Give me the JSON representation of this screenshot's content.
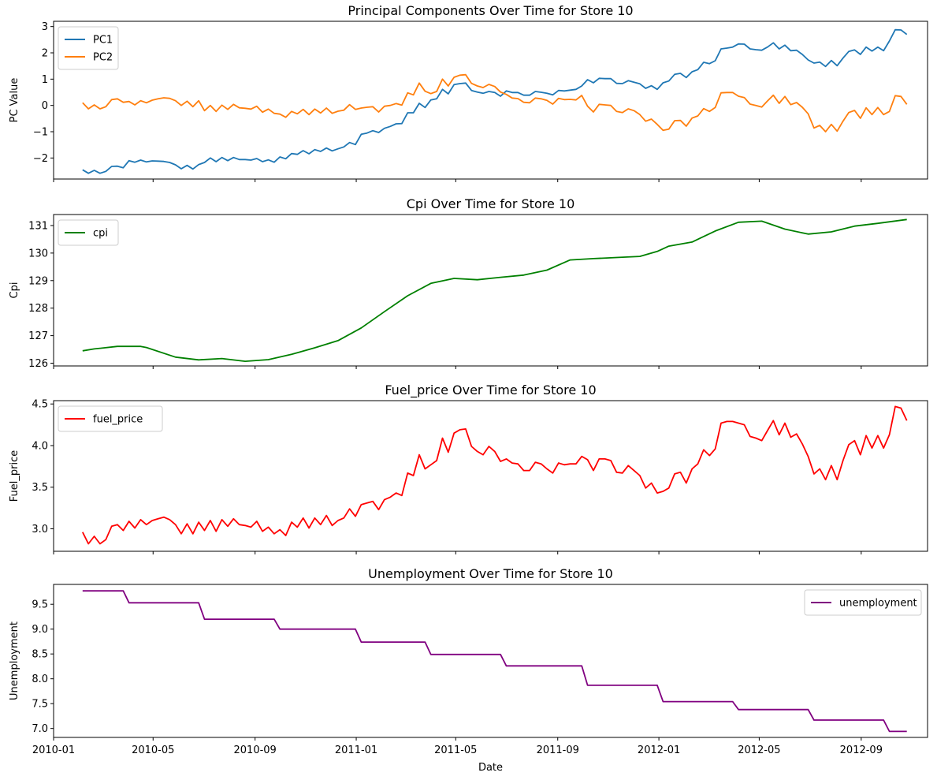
{
  "chart_data": [
    {
      "type": "line",
      "title": "Principal Components Over Time for Store 10",
      "xlabel": "",
      "ylabel": "PC Value",
      "xlim": [
        "2010-01-01",
        "2012-11-20"
      ],
      "ylim": [
        -2.8,
        3.2
      ],
      "yticks": [
        3,
        2,
        1,
        0,
        -1,
        -2
      ],
      "ytick_labels": [
        "3",
        "2",
        "1",
        "0",
        "−1",
        "−2"
      ],
      "legend_position": "upper-left",
      "grid": false,
      "series": [
        {
          "name": "PC1",
          "color": "#1f77b4",
          "step_days": 7,
          "start": "2010-02-05",
          "values": [
            -2.45,
            -2.58,
            -2.47,
            -2.58,
            -2.51,
            -2.32,
            -2.31,
            -2.37,
            -2.1,
            -2.16,
            -2.08,
            -2.15,
            -2.11,
            -2.12,
            -2.13,
            -2.17,
            -2.26,
            -2.41,
            -2.28,
            -2.42,
            -2.25,
            -2.17,
            -2.0,
            -2.14,
            -1.98,
            -2.1,
            -1.98,
            -2.06,
            -2.06,
            -2.08,
            -2.02,
            -2.14,
            -2.07,
            -2.16,
            -1.96,
            -2.03,
            -1.83,
            -1.86,
            -1.72,
            -1.84,
            -1.68,
            -1.75,
            -1.62,
            -1.73,
            -1.65,
            -1.58,
            -1.41,
            -1.49,
            -1.1,
            -1.05,
            -0.96,
            -1.03,
            -0.87,
            -0.8,
            -0.7,
            -0.69,
            -0.28,
            -0.28,
            0.08,
            -0.08,
            0.21,
            0.25,
            0.61,
            0.44,
            0.79,
            0.83,
            0.85,
            0.57,
            0.51,
            0.46,
            0.53,
            0.49,
            0.35,
            0.55,
            0.49,
            0.49,
            0.39,
            0.39,
            0.53,
            0.5,
            0.46,
            0.4,
            0.57,
            0.55,
            0.58,
            0.61,
            0.74,
            0.98,
            0.86,
            1.03,
            1.02,
            1.02,
            0.84,
            0.83,
            0.94,
            0.88,
            0.82,
            0.65,
            0.75,
            0.61,
            0.86,
            0.93,
            1.18,
            1.22,
            1.06,
            1.28,
            1.36,
            1.64,
            1.59,
            1.7,
            2.15,
            2.18,
            2.22,
            2.34,
            2.33,
            2.15,
            2.12,
            2.1,
            2.22,
            2.38,
            2.15,
            2.29,
            2.08,
            2.1,
            1.94,
            1.73,
            1.61,
            1.65,
            1.48,
            1.71,
            1.51,
            1.8,
            2.05,
            2.11,
            1.94,
            2.22,
            2.07,
            2.22,
            2.08,
            2.45,
            2.88,
            2.87,
            2.7
          ]
        },
        {
          "name": "PC2",
          "color": "#ff7f0e",
          "step_days": 7,
          "start": "2010-02-05",
          "values": [
            0.1,
            -0.13,
            0.02,
            -0.13,
            -0.05,
            0.22,
            0.25,
            0.12,
            0.15,
            0.02,
            0.18,
            0.1,
            0.2,
            0.25,
            0.29,
            0.27,
            0.18,
            0.0,
            0.16,
            -0.05,
            0.18,
            -0.2,
            0.0,
            -0.23,
            0.01,
            -0.15,
            0.04,
            -0.09,
            -0.11,
            -0.14,
            -0.03,
            -0.26,
            -0.14,
            -0.3,
            -0.33,
            -0.45,
            -0.23,
            -0.32,
            -0.15,
            -0.35,
            -0.14,
            -0.29,
            -0.1,
            -0.3,
            -0.22,
            -0.18,
            0.03,
            -0.15,
            -0.1,
            -0.07,
            -0.05,
            -0.25,
            -0.03,
            0.0,
            0.07,
            0.01,
            0.48,
            0.4,
            0.85,
            0.54,
            0.45,
            0.53,
            1.0,
            0.74,
            1.07,
            1.15,
            1.17,
            0.84,
            0.74,
            0.68,
            0.8,
            0.72,
            0.51,
            0.42,
            0.28,
            0.26,
            0.12,
            0.1,
            0.28,
            0.25,
            0.19,
            0.05,
            0.27,
            0.22,
            0.23,
            0.21,
            0.38,
            -0.03,
            -0.25,
            0.04,
            0.02,
            0.0,
            -0.23,
            -0.27,
            -0.13,
            -0.2,
            -0.35,
            -0.6,
            -0.52,
            -0.72,
            -0.95,
            -0.9,
            -0.58,
            -0.57,
            -0.79,
            -0.48,
            -0.4,
            -0.12,
            -0.23,
            -0.08,
            0.48,
            0.49,
            0.49,
            0.35,
            0.3,
            0.05,
            0.0,
            -0.06,
            0.17,
            0.39,
            0.08,
            0.34,
            0.03,
            0.11,
            -0.07,
            -0.32,
            -0.86,
            -0.76,
            -1.0,
            -0.72,
            -0.98,
            -0.6,
            -0.27,
            -0.19,
            -0.49,
            -0.09,
            -0.35,
            -0.08,
            -0.35,
            -0.23,
            0.37,
            0.34,
            0.04
          ]
        }
      ]
    },
    {
      "type": "line",
      "title": "Cpi Over Time for Store 10",
      "xlabel": "",
      "ylabel": "Cpi",
      "xlim": [
        "2010-01-01",
        "2012-11-20"
      ],
      "ylim": [
        125.9,
        131.4
      ],
      "yticks": [
        131,
        130,
        129,
        128,
        127,
        126
      ],
      "ytick_labels": [
        "131",
        "130",
        "129",
        "128",
        "127",
        "126"
      ],
      "legend_position": "upper-left",
      "grid": false,
      "series": [
        {
          "name": "cpi",
          "color": "#008000",
          "x": [
            "2010-02-05",
            "2010-02-19",
            "2010-03-19",
            "2010-04-16",
            "2010-04-23",
            "2010-05-28",
            "2010-06-25",
            "2010-07-23",
            "2010-08-20",
            "2010-09-17",
            "2010-10-15",
            "2010-11-12",
            "2010-12-10",
            "2011-01-07",
            "2011-02-04",
            "2011-03-04",
            "2011-04-01",
            "2011-04-29",
            "2011-05-27",
            "2011-06-24",
            "2011-07-22",
            "2011-08-19",
            "2011-09-16",
            "2011-10-14",
            "2011-11-11",
            "2011-12-09",
            "2011-12-30",
            "2012-01-13",
            "2012-02-10",
            "2012-03-09",
            "2012-04-06",
            "2012-05-04",
            "2012-06-01",
            "2012-06-29",
            "2012-07-27",
            "2012-08-24",
            "2012-09-21",
            "2012-10-26"
          ],
          "values": [
            126.45,
            126.52,
            126.61,
            126.61,
            126.57,
            126.22,
            126.12,
            126.17,
            126.07,
            126.13,
            126.32,
            126.56,
            126.82,
            127.28,
            127.87,
            128.45,
            128.9,
            129.08,
            129.03,
            129.12,
            129.2,
            129.38,
            129.75,
            129.8,
            129.84,
            129.88,
            130.06,
            130.25,
            130.4,
            130.8,
            131.12,
            131.16,
            130.87,
            130.69,
            130.77,
            130.98,
            131.08,
            131.22
          ]
        }
      ]
    },
    {
      "type": "line",
      "title": "Fuel_price Over Time for Store 10",
      "xlabel": "",
      "ylabel": "Fuel_price",
      "xlim": [
        "2010-01-01",
        "2012-11-20"
      ],
      "ylim": [
        2.73,
        4.54
      ],
      "yticks": [
        4.5,
        4.0,
        3.5,
        3.0
      ],
      "ytick_labels": [
        "4.5",
        "4.0",
        "3.5",
        "3.0"
      ],
      "legend_position": "upper-left",
      "grid": false,
      "series": [
        {
          "name": "fuel_price",
          "color": "#ff0000",
          "step_days": 7,
          "start": "2010-02-05",
          "values": [
            2.96,
            2.82,
            2.91,
            2.82,
            2.87,
            3.03,
            3.05,
            2.98,
            3.09,
            3.01,
            3.11,
            3.05,
            3.1,
            3.12,
            3.14,
            3.11,
            3.05,
            2.94,
            3.06,
            2.94,
            3.08,
            2.98,
            3.1,
            2.97,
            3.11,
            3.03,
            3.12,
            3.05,
            3.04,
            3.02,
            3.09,
            2.97,
            3.02,
            2.94,
            2.99,
            2.92,
            3.08,
            3.02,
            3.13,
            3.01,
            3.13,
            3.05,
            3.16,
            3.04,
            3.1,
            3.13,
            3.24,
            3.15,
            3.29,
            3.31,
            3.33,
            3.23,
            3.35,
            3.38,
            3.43,
            3.4,
            3.67,
            3.64,
            3.89,
            3.72,
            3.77,
            3.82,
            4.09,
            3.92,
            4.15,
            4.19,
            4.2,
            3.99,
            3.93,
            3.89,
            3.99,
            3.93,
            3.81,
            3.84,
            3.79,
            3.78,
            3.7,
            3.7,
            3.8,
            3.78,
            3.72,
            3.67,
            3.79,
            3.77,
            3.78,
            3.78,
            3.87,
            3.83,
            3.7,
            3.84,
            3.84,
            3.82,
            3.68,
            3.67,
            3.76,
            3.7,
            3.64,
            3.49,
            3.55,
            3.43,
            3.45,
            3.49,
            3.66,
            3.68,
            3.55,
            3.72,
            3.78,
            3.95,
            3.88,
            3.96,
            4.27,
            4.29,
            4.29,
            4.27,
            4.25,
            4.11,
            4.09,
            4.06,
            4.18,
            4.3,
            4.13,
            4.27,
            4.1,
            4.14,
            4.02,
            3.87,
            3.66,
            3.72,
            3.59,
            3.76,
            3.59,
            3.82,
            4.01,
            4.06,
            3.89,
            4.12,
            3.97,
            4.12,
            3.97,
            4.13,
            4.47,
            4.45,
            4.3
          ]
        }
      ]
    },
    {
      "type": "line",
      "title": "Unemployment Over Time for Store 10",
      "xlabel": "Date",
      "ylabel": "Unemployment",
      "xlim": [
        "2010-01-01",
        "2012-11-20"
      ],
      "ylim": [
        6.82,
        9.9
      ],
      "yticks": [
        9.5,
        9.0,
        8.5,
        8.0,
        7.5,
        7.0
      ],
      "ytick_labels": [
        "9.5",
        "9.0",
        "8.5",
        "8.0",
        "7.5",
        "7.0"
      ],
      "xticks": [
        "2010-01-01",
        "2010-05-01",
        "2010-09-01",
        "2011-01-01",
        "2011-05-01",
        "2011-09-01",
        "2012-01-01",
        "2012-05-01",
        "2012-09-01"
      ],
      "xtick_labels": [
        "2010-01",
        "2010-05",
        "2010-09",
        "2011-01",
        "2011-05",
        "2011-09",
        "2012-01",
        "2012-05",
        "2012-09"
      ],
      "legend_position": "upper-right",
      "grid": false,
      "series": [
        {
          "name": "unemployment",
          "color": "#800080",
          "step_series": true,
          "x": [
            "2010-02-05",
            "2010-03-26",
            "2010-04-02",
            "2010-06-25",
            "2010-07-02",
            "2010-09-24",
            "2010-10-01",
            "2010-12-31",
            "2011-01-07",
            "2011-03-25",
            "2011-04-01",
            "2011-06-24",
            "2011-07-01",
            "2011-09-30",
            "2011-10-07",
            "2011-12-30",
            "2012-01-06",
            "2012-03-30",
            "2012-04-06",
            "2012-06-29",
            "2012-07-06",
            "2012-09-28",
            "2012-10-05",
            "2012-10-26"
          ],
          "values": [
            9.77,
            9.77,
            9.53,
            9.53,
            9.2,
            9.2,
            9.0,
            9.0,
            8.74,
            8.74,
            8.49,
            8.49,
            8.26,
            8.26,
            7.87,
            7.87,
            7.54,
            7.54,
            7.38,
            7.38,
            7.17,
            7.17,
            6.94,
            6.94
          ]
        }
      ]
    }
  ]
}
